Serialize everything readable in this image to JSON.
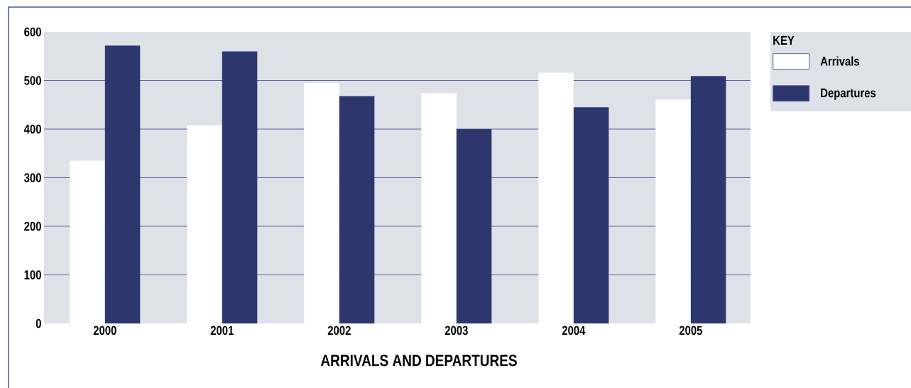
{
  "chart_data": {
    "type": "bar",
    "title": "ARRIVALS AND DEPARTURES",
    "categories": [
      "2000",
      "2001",
      "2002",
      "2003",
      "2004",
      "2005"
    ],
    "series": [
      {
        "name": "Arrivals",
        "color": "#ffffff",
        "values": [
          335,
          408,
          495,
          474,
          516,
          461
        ]
      },
      {
        "name": "Departures",
        "color": "#2d376e",
        "values": [
          572,
          560,
          468,
          400,
          445,
          509
        ]
      }
    ],
    "ylim": [
      0,
      600
    ],
    "yticks": [
      0,
      100,
      200,
      300,
      400,
      500,
      600
    ],
    "grid": "y",
    "legend": "top right",
    "legend_title": "KEY"
  }
}
